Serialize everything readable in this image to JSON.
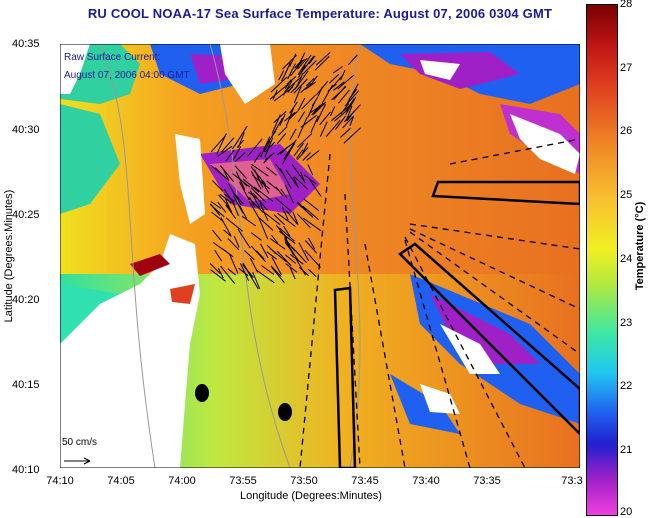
{
  "title": "RU COOL  NOAA-17  Sea Surface Temperature:  August 07, 2006 0304 GMT",
  "overlay_label_1": "Raw Surface Current:",
  "overlay_label_2": "August 07, 2006 04:00 GMT",
  "scale_label": "50 cm/s",
  "y_axis": {
    "title": "Latitude (Degrees:Minutes)",
    "ticks": [
      "40:35",
      "40:30",
      "40:25",
      "40:20",
      "40:15",
      "40:10"
    ]
  },
  "x_axis": {
    "title": "Longitude (Degrees:Minutes)",
    "ticks": [
      "74:10",
      "74:05",
      "74:00",
      "73:55",
      "73:50",
      "73:45",
      "73:40",
      "73:35",
      "73:3"
    ]
  },
  "colorbar": {
    "title": "Temperature (°C)",
    "ticks": [
      "28",
      "27",
      "26",
      "25",
      "24",
      "23",
      "22",
      "21",
      "20"
    ],
    "range": [
      20,
      28
    ]
  },
  "colors": {
    "title": "#1a1a9a",
    "warm": "#f08a25",
    "cool": "#2060f0",
    "land": "#ffffff"
  }
}
